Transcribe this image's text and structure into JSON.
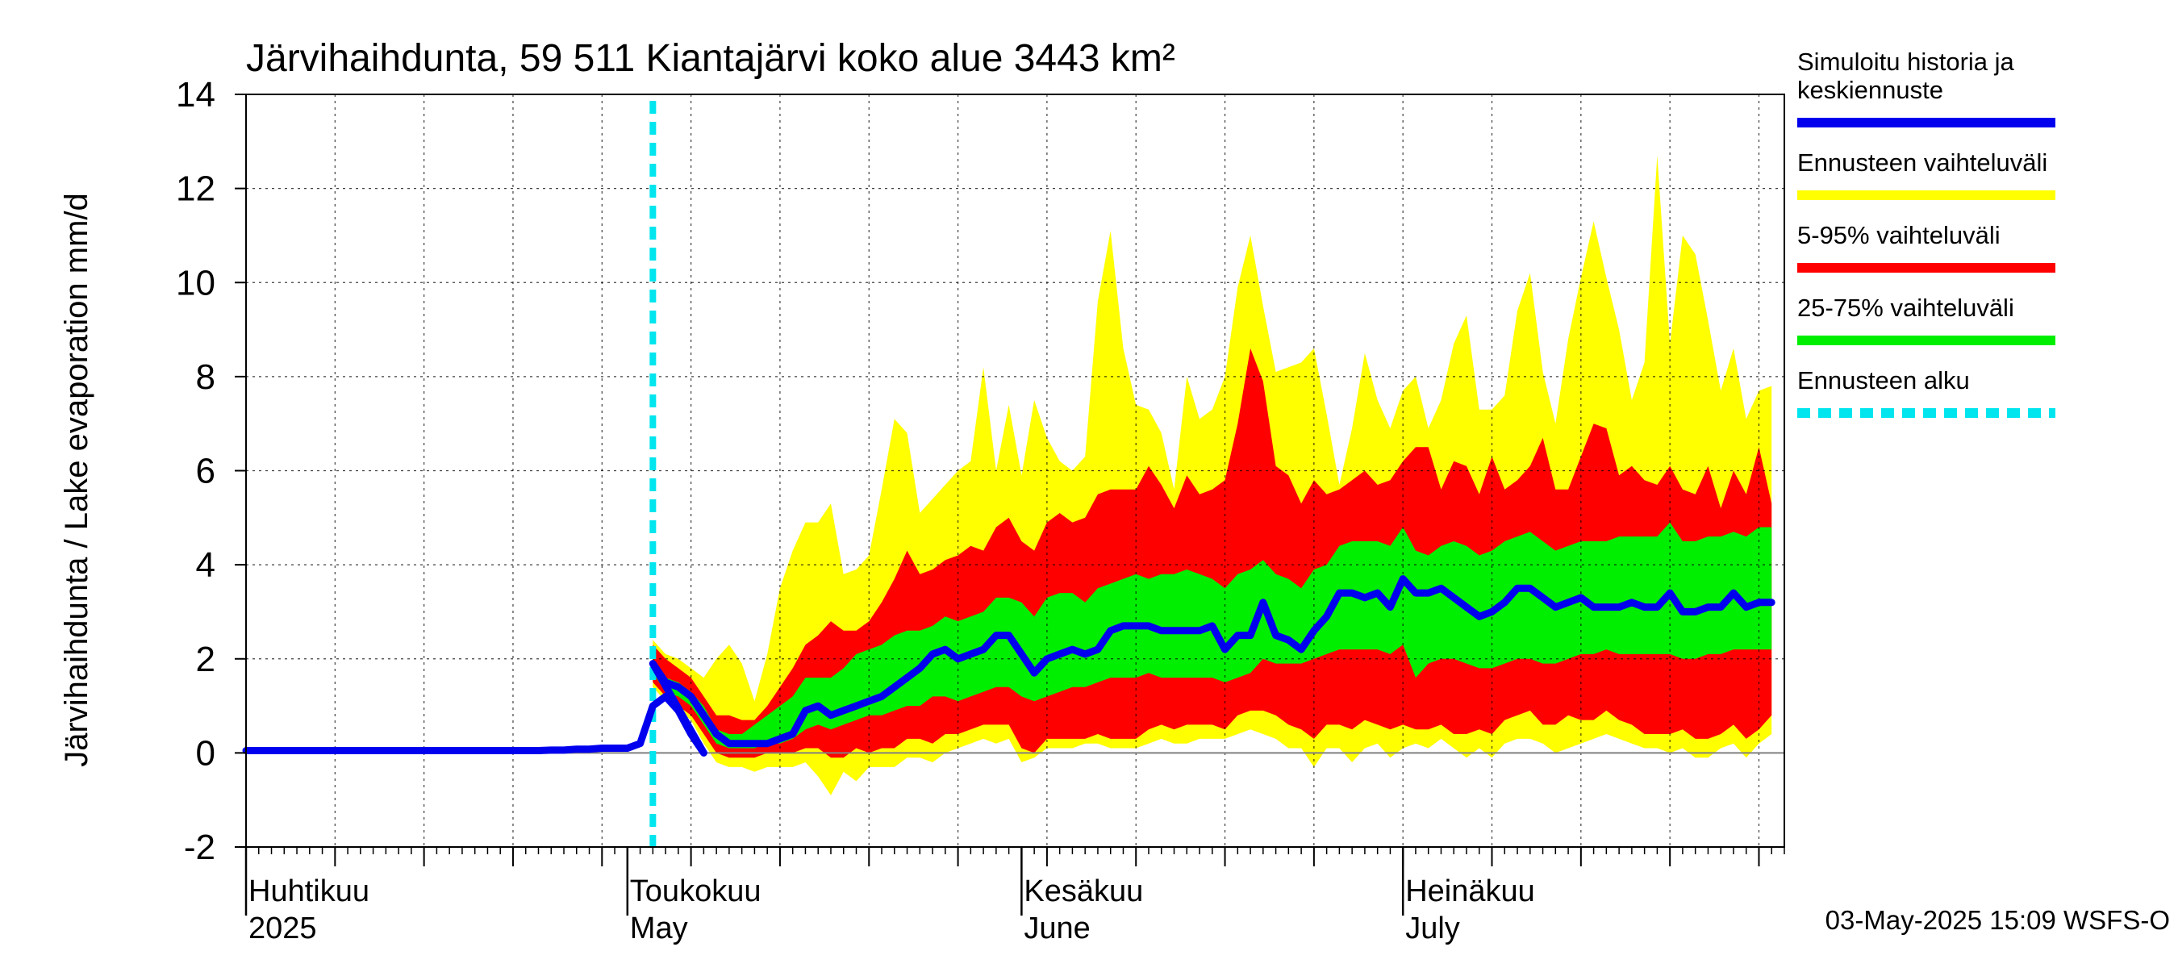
{
  "chart_data": {
    "type": "area",
    "title": "Järvihaihdunta, 59 511 Kiantajärvi koko alue 3443 km²",
    "ylabel": "Järvihaihdunta / Lake evaporation   mm/d",
    "ylim": [
      -2,
      14
    ],
    "yticks": [
      -2,
      0,
      2,
      4,
      6,
      8,
      10,
      12,
      14
    ],
    "xlim": [
      "2025-04-01",
      "2025-07-31"
    ],
    "grid": true,
    "legend_position": "right",
    "month_labels": [
      {
        "date": "2025-04-01",
        "fi": "Huhtikuu",
        "en": "2025"
      },
      {
        "date": "2025-05-01",
        "fi": "Toukokuu",
        "en": "May"
      },
      {
        "date": "2025-06-01",
        "fi": "Kesäkuu",
        "en": "June"
      },
      {
        "date": "2025-07-01",
        "fi": "Heinäkuu",
        "en": "July"
      }
    ],
    "forecast_start": "2025-05-03",
    "footer": "03-May-2025 15:09 WSFS-O",
    "colors": {
      "median": "#0000ee",
      "range_full": "#ffff00",
      "range_5_95": "#ff0000",
      "range_25_75": "#00ee00",
      "forecast_start": "#00e5ee",
      "zero_line": "#808080"
    },
    "legend": [
      {
        "label": "Simuloitu historia ja keskiennuste",
        "lines": [
          "Simuloitu historia ja",
          "keskiennuste"
        ],
        "color": "#0000ee",
        "style": "solid"
      },
      {
        "label": "Ennusteen vaihteluväli",
        "lines": [
          "Ennusteen vaihteluväli"
        ],
        "color": "#ffff00",
        "style": "solid"
      },
      {
        "label": "5-95% vaihteluväli",
        "lines": [
          "5-95% vaihteluväli"
        ],
        "color": "#ff0000",
        "style": "solid"
      },
      {
        "label": "25-75% vaihteluväli",
        "lines": [
          "25-75% vaihteluväli"
        ],
        "color": "#00ee00",
        "style": "solid"
      },
      {
        "label": "Ennusteen alku",
        "lines": [
          "Ennusteen alku"
        ],
        "color": "#00e5ee",
        "style": "dashed"
      }
    ],
    "history": {
      "start": "2025-04-01",
      "values": [
        0.05,
        0.05,
        0.05,
        0.05,
        0.05,
        0.05,
        0.05,
        0.05,
        0.05,
        0.05,
        0.05,
        0.05,
        0.05,
        0.05,
        0.05,
        0.05,
        0.05,
        0.05,
        0.05,
        0.05,
        0.05,
        0.05,
        0.05,
        0.05,
        0.06,
        0.06,
        0.08,
        0.08,
        0.1,
        0.1,
        0.1,
        0.2,
        1.0,
        1.2,
        0.9,
        0.4,
        0.0
      ]
    },
    "forecast": {
      "start": "2025-05-03",
      "median": [
        1.9,
        1.5,
        1.4,
        1.2,
        0.8,
        0.4,
        0.2,
        0.2,
        0.2,
        0.2,
        0.3,
        0.4,
        0.9,
        1.0,
        0.8,
        0.9,
        1.0,
        1.1,
        1.2,
        1.4,
        1.6,
        1.8,
        2.1,
        2.2,
        2.0,
        2.1,
        2.2,
        2.5,
        2.5,
        2.1,
        1.7,
        2.0,
        2.1,
        2.2,
        2.1,
        2.2,
        2.6,
        2.7,
        2.7,
        2.7,
        2.6,
        2.6,
        2.6,
        2.6,
        2.7,
        2.2,
        2.5,
        2.5,
        3.2,
        2.5,
        2.4,
        2.2,
        2.6,
        2.9,
        3.4,
        3.4,
        3.3,
        3.4,
        3.1,
        3.7,
        3.4,
        3.4,
        3.5,
        3.3,
        3.1,
        2.9,
        3.0,
        3.2,
        3.5,
        3.5,
        3.3,
        3.1,
        3.2,
        3.3,
        3.1,
        3.1,
        3.1,
        3.2,
        3.1,
        3.1,
        3.4,
        3.0,
        3.0,
        3.1,
        3.1,
        3.4,
        3.1,
        3.2,
        3.2
      ],
      "p25": [
        1.7,
        1.3,
        1.2,
        1.0,
        0.6,
        0.2,
        0.1,
        0.1,
        0.1,
        0.2,
        0.2,
        0.3,
        0.5,
        0.6,
        0.5,
        0.6,
        0.7,
        0.8,
        0.8,
        0.9,
        1.0,
        1.0,
        1.2,
        1.2,
        1.1,
        1.2,
        1.3,
        1.4,
        1.4,
        1.2,
        1.1,
        1.2,
        1.3,
        1.4,
        1.4,
        1.5,
        1.6,
        1.6,
        1.6,
        1.7,
        1.6,
        1.6,
        1.6,
        1.6,
        1.6,
        1.5,
        1.6,
        1.7,
        2.0,
        1.9,
        1.9,
        1.9,
        2.0,
        2.1,
        2.2,
        2.2,
        2.2,
        2.2,
        2.1,
        2.3,
        1.6,
        1.9,
        2.0,
        2.0,
        1.9,
        1.8,
        1.8,
        1.9,
        2.0,
        2.0,
        1.9,
        1.9,
        2.0,
        2.1,
        2.1,
        2.2,
        2.1,
        2.1,
        2.1,
        2.1,
        2.1,
        2.0,
        2.0,
        2.1,
        2.1,
        2.2,
        2.2,
        2.2,
        2.2
      ],
      "p75": [
        2.0,
        1.6,
        1.5,
        1.3,
        1.0,
        0.5,
        0.4,
        0.4,
        0.6,
        0.8,
        1.0,
        1.2,
        1.6,
        1.6,
        1.6,
        1.8,
        2.1,
        2.2,
        2.3,
        2.5,
        2.6,
        2.6,
        2.7,
        2.9,
        2.8,
        2.9,
        3.0,
        3.3,
        3.3,
        3.2,
        2.9,
        3.3,
        3.4,
        3.4,
        3.2,
        3.5,
        3.6,
        3.7,
        3.8,
        3.7,
        3.8,
        3.8,
        3.9,
        3.8,
        3.7,
        3.5,
        3.8,
        3.9,
        4.1,
        3.8,
        3.7,
        3.5,
        3.9,
        4.0,
        4.4,
        4.5,
        4.5,
        4.5,
        4.4,
        4.8,
        4.3,
        4.2,
        4.4,
        4.5,
        4.4,
        4.2,
        4.3,
        4.5,
        4.6,
        4.7,
        4.5,
        4.3,
        4.4,
        4.5,
        4.5,
        4.5,
        4.6,
        4.6,
        4.6,
        4.6,
        4.9,
        4.5,
        4.5,
        4.6,
        4.6,
        4.7,
        4.6,
        4.8,
        4.8
      ],
      "p5": [
        1.5,
        1.2,
        1.0,
        0.8,
        0.4,
        0.0,
        -0.1,
        -0.1,
        -0.1,
        0.0,
        0.0,
        0.0,
        0.1,
        0.1,
        -0.1,
        -0.1,
        0.1,
        0.0,
        0.1,
        0.1,
        0.3,
        0.3,
        0.2,
        0.4,
        0.4,
        0.5,
        0.6,
        0.6,
        0.6,
        0.1,
        0.0,
        0.3,
        0.3,
        0.3,
        0.3,
        0.4,
        0.3,
        0.3,
        0.3,
        0.5,
        0.6,
        0.5,
        0.6,
        0.6,
        0.6,
        0.5,
        0.8,
        0.9,
        0.9,
        0.8,
        0.6,
        0.5,
        0.3,
        0.6,
        0.6,
        0.5,
        0.7,
        0.6,
        0.5,
        0.6,
        0.5,
        0.5,
        0.6,
        0.4,
        0.4,
        0.5,
        0.4,
        0.7,
        0.8,
        0.9,
        0.6,
        0.6,
        0.8,
        0.7,
        0.7,
        0.9,
        0.7,
        0.6,
        0.4,
        0.4,
        0.4,
        0.5,
        0.3,
        0.3,
        0.4,
        0.6,
        0.3,
        0.5,
        0.8
      ],
      "p95": [
        2.3,
        2.0,
        1.8,
        1.6,
        1.2,
        0.8,
        0.8,
        0.7,
        0.7,
        1.0,
        1.4,
        1.8,
        2.3,
        2.5,
        2.8,
        2.6,
        2.6,
        2.8,
        3.2,
        3.7,
        4.3,
        3.8,
        3.9,
        4.1,
        4.2,
        4.4,
        4.3,
        4.8,
        5.0,
        4.5,
        4.3,
        4.9,
        5.1,
        4.9,
        5.0,
        5.5,
        5.6,
        5.6,
        5.6,
        6.1,
        5.7,
        5.2,
        5.9,
        5.5,
        5.6,
        5.8,
        7.0,
        8.6,
        7.9,
        6.1,
        5.9,
        5.3,
        5.8,
        5.5,
        5.6,
        5.8,
        6.0,
        5.7,
        5.8,
        6.2,
        6.5,
        6.5,
        5.6,
        6.2,
        6.1,
        5.5,
        6.3,
        5.6,
        5.8,
        6.1,
        6.7,
        5.6,
        5.6,
        6.3,
        7.0,
        6.9,
        5.9,
        6.1,
        5.8,
        5.7,
        6.1,
        5.6,
        5.5,
        6.1,
        5.2,
        6.0,
        5.5,
        6.5,
        5.3
      ],
      "min": [
        1.4,
        1.1,
        0.9,
        0.7,
        0.2,
        -0.2,
        -0.3,
        -0.3,
        -0.4,
        -0.3,
        -0.3,
        -0.3,
        -0.2,
        -0.5,
        -0.9,
        -0.4,
        -0.6,
        -0.3,
        -0.3,
        -0.3,
        -0.1,
        -0.1,
        -0.2,
        0.0,
        0.1,
        0.2,
        0.3,
        0.2,
        0.3,
        -0.2,
        -0.1,
        0.1,
        0.1,
        0.1,
        0.2,
        0.2,
        0.1,
        0.1,
        0.1,
        0.2,
        0.3,
        0.2,
        0.2,
        0.3,
        0.3,
        0.3,
        0.4,
        0.5,
        0.4,
        0.3,
        0.1,
        0.1,
        -0.3,
        0.1,
        0.1,
        -0.2,
        0.1,
        0.2,
        -0.1,
        0.1,
        0.2,
        0.1,
        0.3,
        0.1,
        -0.1,
        0.1,
        -0.1,
        0.2,
        0.3,
        0.3,
        0.2,
        0.0,
        0.1,
        0.2,
        0.3,
        0.4,
        0.3,
        0.2,
        0.1,
        0.1,
        0.0,
        0.1,
        -0.1,
        -0.1,
        0.1,
        0.2,
        -0.1,
        0.2,
        0.4
      ],
      "max": [
        2.4,
        2.1,
        2.0,
        1.8,
        1.6,
        2.0,
        2.3,
        1.9,
        1.1,
        2.1,
        3.5,
        4.3,
        4.9,
        4.9,
        5.3,
        3.8,
        3.9,
        4.2,
        5.6,
        7.1,
        6.8,
        5.1,
        5.4,
        5.7,
        6.0,
        6.2,
        8.2,
        6.0,
        7.4,
        5.9,
        7.5,
        6.7,
        6.2,
        6.0,
        6.3,
        9.6,
        11.1,
        8.6,
        7.4,
        7.3,
        6.8,
        5.6,
        8.0,
        7.1,
        7.3,
        8.0,
        9.9,
        11.0,
        9.5,
        8.1,
        8.2,
        8.3,
        8.6,
        7.2,
        5.7,
        6.9,
        8.5,
        7.5,
        6.9,
        7.7,
        8.0,
        6.9,
        7.5,
        8.7,
        9.3,
        7.3,
        7.3,
        7.6,
        9.4,
        10.2,
        8.1,
        7.0,
        8.8,
        10.1,
        11.3,
        10.1,
        9.0,
        7.5,
        8.3,
        12.7,
        8.7,
        11.0,
        10.6,
        9.2,
        7.7,
        8.6,
        7.1,
        7.7,
        7.8
      ]
    }
  }
}
